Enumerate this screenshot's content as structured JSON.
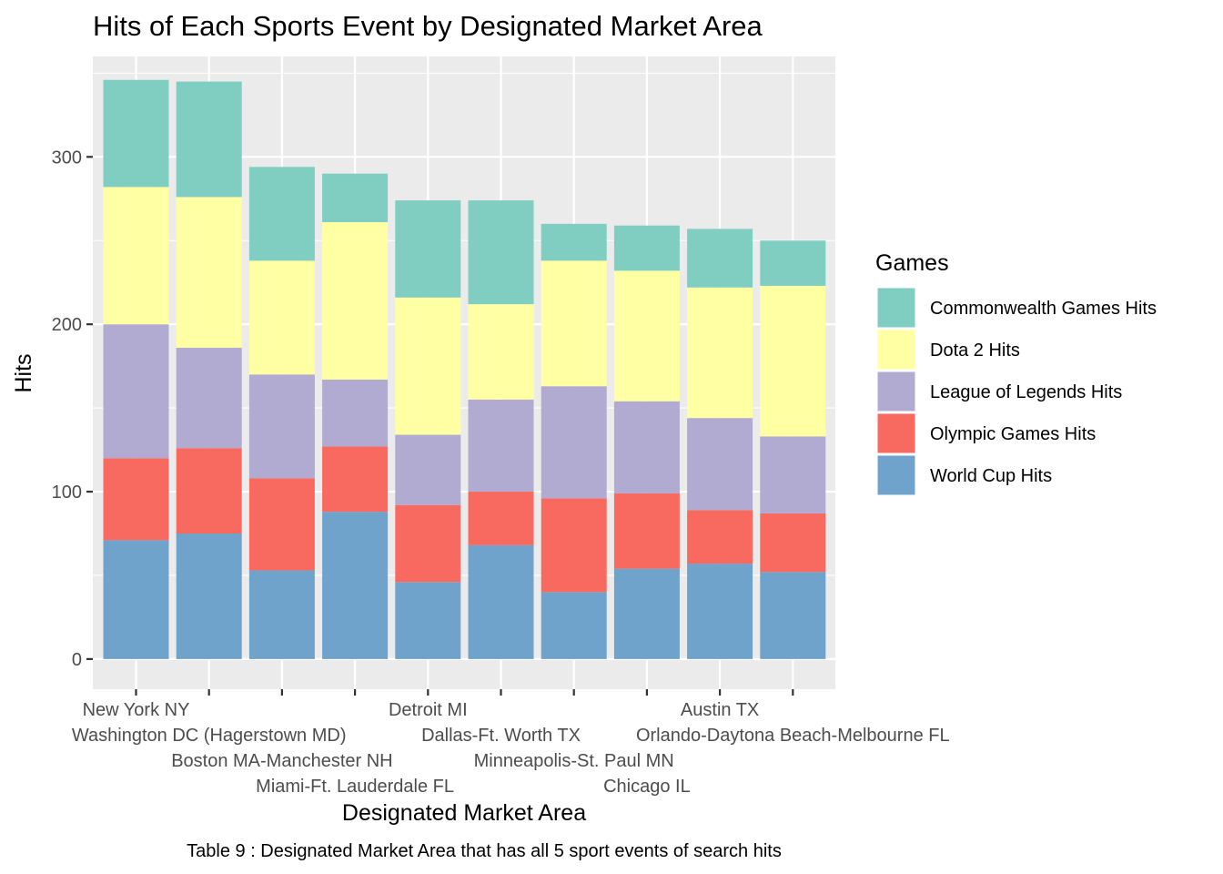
{
  "chart_data": {
    "type": "bar",
    "stacked": true,
    "title": "Hits of Each Sports Event by Designated Market Area",
    "xlabel": "Designated Market Area",
    "ylabel": "Hits",
    "caption": "Table 9 : Designated Market Area that has all 5 sport events of search hits",
    "ylim": [
      -18,
      360
    ],
    "y_ticks": [
      0,
      100,
      200,
      300
    ],
    "y_tick_labels": [
      "0",
      "100",
      "200",
      "300"
    ],
    "grid": true,
    "legend_title": "Games",
    "legend_position": "right",
    "categories": [
      "New York NY",
      "Washington DC (Hagerstown MD)",
      "Boston MA-Manchester NH",
      "Miami-Ft. Lauderdale FL",
      "Detroit MI",
      "Dallas-Ft. Worth TX",
      "Minneapolis-St. Paul MN",
      "Chicago IL",
      "Austin TX",
      "Orlando-Daytona Beach-Melbourne FL"
    ],
    "stack_order": [
      "World Cup Hits",
      "Olympic Games Hits",
      "League of Legends Hits",
      "Dota 2 Hits",
      "Commonwealth Games Hits"
    ],
    "series": [
      {
        "name": "Commonwealth Games Hits",
        "color": "#80CDC1",
        "values": [
          64,
          69,
          56,
          29,
          58,
          62,
          22,
          27,
          35,
          27
        ]
      },
      {
        "name": "Dota 2 Hits",
        "color": "#FFFFA3",
        "values": [
          82,
          90,
          68,
          94,
          82,
          57,
          75,
          78,
          78,
          90
        ]
      },
      {
        "name": "League of Legends Hits",
        "color": "#B1ABD2",
        "values": [
          80,
          60,
          62,
          40,
          42,
          55,
          67,
          55,
          55,
          46
        ]
      },
      {
        "name": "Olympic Games Hits",
        "color": "#F8695F",
        "values": [
          49,
          51,
          55,
          39,
          46,
          32,
          56,
          45,
          32,
          35
        ]
      },
      {
        "name": "World Cup Hits",
        "color": "#6FA3CB",
        "values": [
          71,
          75,
          53,
          88,
          46,
          68,
          40,
          54,
          57,
          52
        ]
      }
    ]
  }
}
